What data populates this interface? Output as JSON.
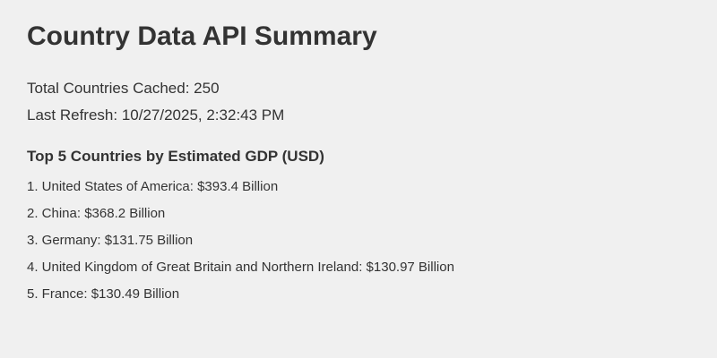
{
  "page": {
    "title": "Country Data API Summary"
  },
  "stats": {
    "total_line": "Total Countries Cached: 250",
    "refresh_line": "Last Refresh: 10/27/2025, 2:32:43 PM"
  },
  "top_gdp": {
    "heading": "Top 5 Countries by Estimated GDP (USD)",
    "items": [
      "1. United States of America: $393.4 Billion",
      "2. China: $368.2 Billion",
      "3. Germany: $131.75 Billion",
      "4. United Kingdom of Great Britain and Northern Ireland: $130.97 Billion",
      "5. France: $130.49 Billion"
    ]
  },
  "colors": {
    "background": "#f0f0f0",
    "text": "#333333"
  }
}
